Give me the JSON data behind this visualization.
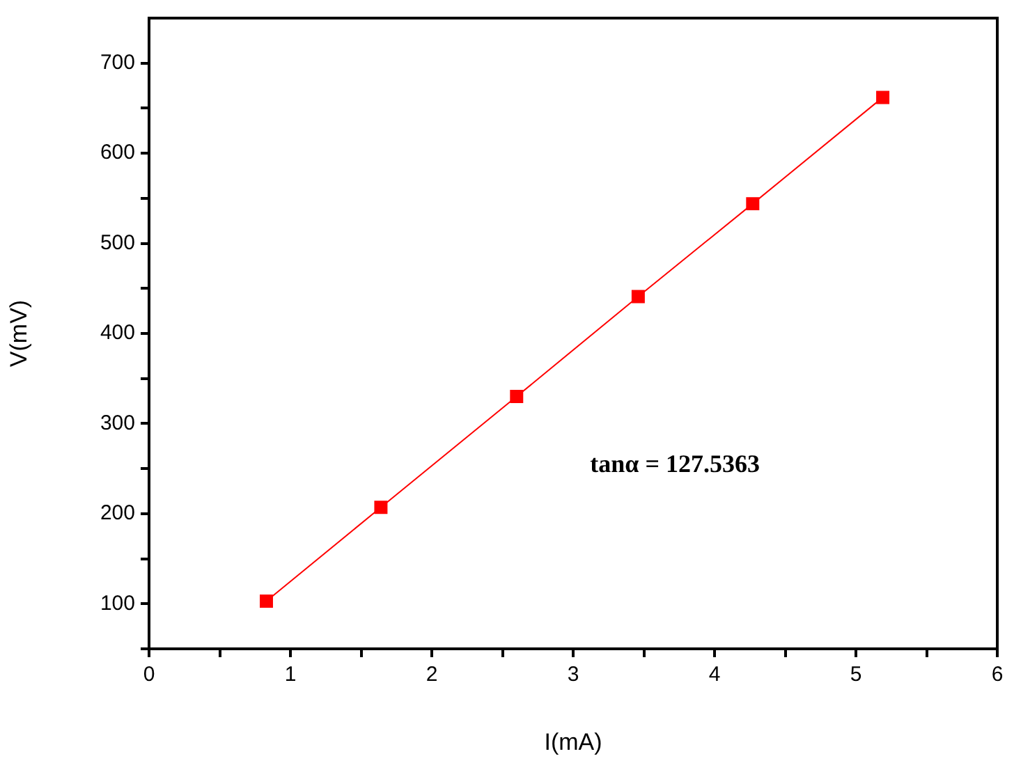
{
  "chart_data": {
    "type": "line",
    "xlabel": "I(mA)",
    "ylabel": "V(mV)",
    "annotations": [
      "tanα = 127.5363"
    ],
    "x": [
      0.83,
      1.64,
      2.6,
      3.46,
      4.27,
      5.19
    ],
    "series": [
      {
        "color": "#ff0000",
        "values": [
          103,
          207,
          330,
          441,
          544,
          662
        ]
      }
    ],
    "xlim": [
      0,
      6
    ],
    "ylim": [
      50,
      750
    ],
    "xticks": [
      0,
      {
        "value": 0.5,
        "label": null
      },
      1,
      {
        "value": 1.5,
        "label": null
      },
      2,
      {
        "value": 2.5,
        "label": null
      },
      3,
      {
        "value": 3.5,
        "label": null
      },
      4,
      {
        "value": 4.5,
        "label": null
      },
      5,
      {
        "value": 5.5,
        "label": null
      },
      6
    ],
    "yticks": [
      {
        "value": 50,
        "label": null
      },
      100,
      {
        "value": 150,
        "label": null
      },
      200,
      {
        "value": 250,
        "label": null
      },
      300,
      {
        "value": 350,
        "label": null
      },
      400,
      {
        "value": 450,
        "label": null
      },
      500,
      {
        "value": 550,
        "label": null
      },
      600,
      {
        "value": 650,
        "label": null
      },
      700
    ],
    "grid": false,
    "legend": false,
    "marker": "square",
    "line_style": "solid"
  }
}
